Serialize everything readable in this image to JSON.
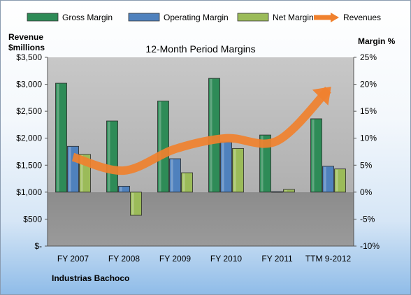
{
  "chart_data": {
    "type": "bar",
    "title": "12-Month Period Margins",
    "company": "Industrias Bachoco",
    "categories": [
      "FY 2007",
      "FY 2008",
      "FY 2009",
      "FY 2010",
      "FY 2011",
      "TTM 9-2012"
    ],
    "series": [
      {
        "name": "Gross Margin",
        "type": "bar",
        "axis": "right",
        "color": "#2e8b57",
        "values": [
          20.2,
          13.2,
          16.9,
          21.1,
          10.6,
          13.6
        ]
      },
      {
        "name": "Operating Margin",
        "type": "bar",
        "axis": "right",
        "color": "#4f81bd",
        "values": [
          8.5,
          1.1,
          6.2,
          9.3,
          0.1,
          4.8
        ]
      },
      {
        "name": "Net Margin",
        "type": "bar",
        "axis": "right",
        "color": "#9bbb59",
        "values": [
          7.0,
          -4.3,
          3.6,
          8.1,
          0.5,
          4.3
        ]
      },
      {
        "name": "Revenues",
        "type": "line",
        "axis": "left",
        "color": "#f0812e",
        "values": [
          1650,
          1400,
          1800,
          2000,
          1950,
          2900
        ]
      }
    ],
    "left_axis": {
      "label_line1": "Revenue",
      "label_line2": "$millions",
      "min": 0,
      "max": 3500,
      "step": 500,
      "tick_labels": [
        "$-",
        "$500",
        "$1,000",
        "$1,500",
        "$2,000",
        "$2,500",
        "$3,000",
        "$3,500"
      ]
    },
    "right_axis": {
      "label": "Margin %",
      "min": -10,
      "max": 25,
      "step": 5,
      "tick_labels": [
        "-10%",
        "-5%",
        "0%",
        "5%",
        "10%",
        "15%",
        "20%",
        "25%"
      ]
    },
    "legend_position": "top",
    "grid": false,
    "colors": {
      "negative_region": "#8c8c8c",
      "positive_region": "#c4c4c4"
    }
  }
}
